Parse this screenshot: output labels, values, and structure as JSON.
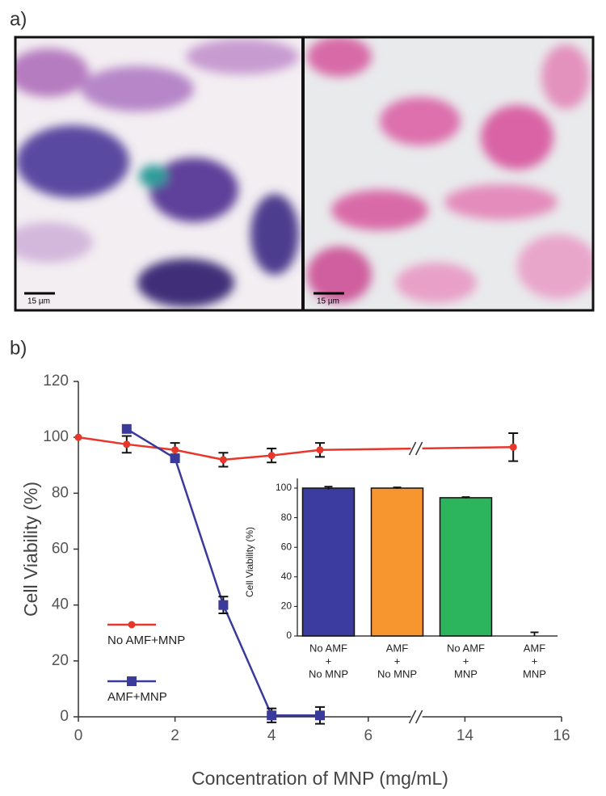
{
  "panels": {
    "a": "a)",
    "b": "b)"
  },
  "images": [
    {
      "scale_bar": "15 µm"
    },
    {
      "scale_bar": "15 µm"
    }
  ],
  "chart_data": [
    {
      "type": "line",
      "xlabel": "Concentration of MNP (mg/mL)",
      "ylabel": "Cell Viability (%)",
      "xlim": [
        0,
        16
      ],
      "xticks": [
        0,
        2,
        4,
        6,
        14,
        16
      ],
      "xbreak": [
        7,
        13
      ],
      "ylim": [
        0,
        120
      ],
      "yticks": [
        0,
        20,
        40,
        60,
        80,
        100,
        120
      ],
      "legend": "lower left",
      "series": [
        {
          "name": "No AMF+MNP",
          "color": "#e8362b",
          "marker": "circle",
          "x": [
            0,
            1,
            2,
            3,
            4,
            5,
            15
          ],
          "values": [
            100,
            97.5,
            95.5,
            92,
            93.5,
            95.5,
            96.5
          ],
          "errors": [
            null,
            3,
            2.5,
            2.5,
            2.5,
            2.5,
            5
          ]
        },
        {
          "name": "AMF+MNP",
          "color": "#3a3a9c",
          "marker": "square",
          "x": [
            1,
            2,
            3,
            4,
            5
          ],
          "values": [
            103,
            92.5,
            40,
            0.5,
            0.5
          ],
          "errors": [
            null,
            null,
            3,
            2.5,
            3
          ]
        }
      ]
    },
    {
      "type": "bar",
      "ylabel": "Cell Viability (%)",
      "ylim": [
        0,
        100
      ],
      "yticks": [
        0,
        20,
        40,
        60,
        80,
        100
      ],
      "categories": [
        [
          "No AMF",
          "+",
          "No MNP"
        ],
        [
          "AMF",
          "+",
          "No MNP"
        ],
        [
          "No AMF",
          "+",
          "MNP"
        ],
        [
          "AMF",
          "+",
          "MNP"
        ]
      ],
      "values": [
        100,
        100,
        93.5,
        0
      ],
      "errors": [
        1,
        0.5,
        0.5,
        2.5
      ],
      "colors": [
        "#3b3ba0",
        "#f7962e",
        "#2db55d",
        "#888888"
      ]
    }
  ]
}
